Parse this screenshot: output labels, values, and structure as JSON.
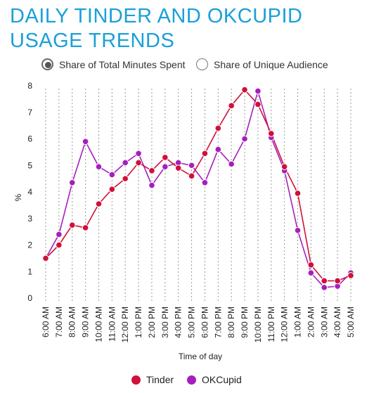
{
  "title": {
    "line1": "DAILY TINDER AND OKCUPID",
    "line2": "USAGE TRENDS"
  },
  "toggles": [
    {
      "label": "Share of Total Minutes Spent",
      "selected": true
    },
    {
      "label": "Share of Unique Audience",
      "selected": false
    }
  ],
  "colors": {
    "title": "#1aa0d8",
    "tinder": "#d0103a",
    "okcupid": "#a51fbe"
  },
  "chart_data": {
    "type": "line",
    "xlabel": "Time of day",
    "ylabel": "%",
    "ylim": [
      0,
      8
    ],
    "yticks": [
      0,
      1,
      2,
      3,
      4,
      5,
      6,
      7,
      8
    ],
    "grid": "vertical dashed",
    "legend_position": "bottom-center",
    "categories": [
      "6:00 AM",
      "7:00 AM",
      "8:00 AM",
      "9:00 AM",
      "10:00 AM",
      "11:00 AM",
      "12:00 PM",
      "1:00 PM",
      "2:00 PM",
      "3:00 PM",
      "4:00 PM",
      "5:00 PM",
      "6:00 PM",
      "7:00 PM",
      "8:00 PM",
      "9:00 PM",
      "10:00 PM",
      "11:00 PM",
      "12:00 AM",
      "1:00 AM",
      "2:00 AM",
      "3:00 AM",
      "4:00 AM",
      "5:00 AM"
    ],
    "series": [
      {
        "name": "Tinder",
        "color": "#d0103a",
        "values": [
          1.5,
          2.0,
          2.75,
          2.65,
          3.55,
          4.1,
          4.5,
          5.1,
          4.8,
          5.3,
          4.9,
          4.6,
          5.45,
          6.4,
          7.25,
          7.85,
          7.3,
          6.2,
          4.95,
          3.95,
          1.25,
          0.65,
          0.65,
          0.85
        ]
      },
      {
        "name": "OKCupid",
        "color": "#a51fbe",
        "values": [
          1.5,
          2.4,
          4.35,
          5.9,
          4.95,
          4.65,
          5.1,
          5.45,
          4.25,
          4.95,
          5.1,
          5.0,
          4.35,
          5.6,
          5.05,
          6.0,
          7.8,
          6.05,
          4.8,
          2.55,
          0.95,
          0.4,
          0.45,
          0.95
        ]
      }
    ]
  }
}
